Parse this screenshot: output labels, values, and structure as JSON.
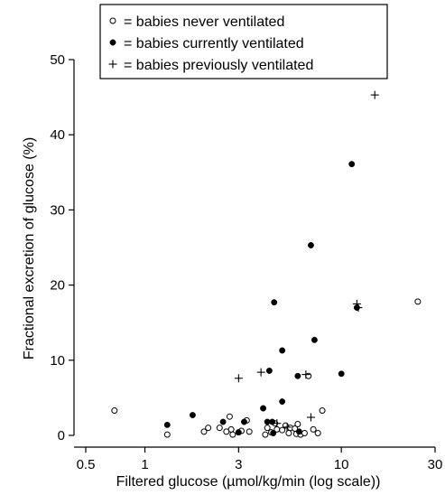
{
  "chart_data": {
    "type": "scatter",
    "title": "",
    "xlabel": "Filtered glucose (µmol/kg/min (log scale))",
    "ylabel": "Fractional excretion of glucose (%)",
    "x_scale": "log",
    "xlim": [
      0.5,
      30
    ],
    "ylim": [
      0,
      50
    ],
    "x_ticks": [
      0.5,
      1,
      3,
      10,
      30
    ],
    "x_tick_labels": [
      "0.5",
      "1",
      "3",
      "10",
      "30"
    ],
    "y_ticks": [
      0,
      10,
      20,
      30,
      40,
      50
    ],
    "y_tick_labels": [
      "0",
      "10",
      "20",
      "30",
      "40",
      "50"
    ],
    "grid": false,
    "legend_position": "top",
    "series": [
      {
        "name": "babies never ventilated",
        "legend_label": "= babies never ventilated",
        "marker": "open-circle",
        "points": [
          [
            0.7,
            3.3
          ],
          [
            1.3,
            0.1
          ],
          [
            2.0,
            0.5
          ],
          [
            2.1,
            1.0
          ],
          [
            2.4,
            1.0
          ],
          [
            2.6,
            0.5
          ],
          [
            2.7,
            2.5
          ],
          [
            2.75,
            0.8
          ],
          [
            2.8,
            0.1
          ],
          [
            3.0,
            0.4
          ],
          [
            3.1,
            0.6
          ],
          [
            3.3,
            2.0
          ],
          [
            3.4,
            0.5
          ],
          [
            4.1,
            0.1
          ],
          [
            4.2,
            1.0
          ],
          [
            4.4,
            0.4
          ],
          [
            4.6,
            1.6
          ],
          [
            4.7,
            0.8
          ],
          [
            5.0,
            0.7
          ],
          [
            5.2,
            1.3
          ],
          [
            5.4,
            0.3
          ],
          [
            5.5,
            1.0
          ],
          [
            5.8,
            0.9
          ],
          [
            5.9,
            0.2
          ],
          [
            6.0,
            1.5
          ],
          [
            6.2,
            0.1
          ],
          [
            6.5,
            0.3
          ],
          [
            6.8,
            7.9
          ],
          [
            7.2,
            0.8
          ],
          [
            7.6,
            0.3
          ],
          [
            8.0,
            3.3
          ],
          [
            24.5,
            17.8
          ]
        ]
      },
      {
        "name": "babies currently ventilated",
        "legend_label": "= babies currently ventilated",
        "marker": "filled-circle",
        "points": [
          [
            1.3,
            1.4
          ],
          [
            1.75,
            2.7
          ],
          [
            2.5,
            1.8
          ],
          [
            3.0,
            0.4
          ],
          [
            3.2,
            1.8
          ],
          [
            4.0,
            3.6
          ],
          [
            4.2,
            1.8
          ],
          [
            4.3,
            8.6
          ],
          [
            4.45,
            1.8
          ],
          [
            4.5,
            0.3
          ],
          [
            4.55,
            17.7
          ],
          [
            5.0,
            4.5
          ],
          [
            5.0,
            11.3
          ],
          [
            6.0,
            7.9
          ],
          [
            6.1,
            0.5
          ],
          [
            7.0,
            25.3
          ],
          [
            7.3,
            12.7
          ],
          [
            10.0,
            8.2
          ],
          [
            11.3,
            36.1
          ],
          [
            12.0,
            17.0
          ]
        ]
      },
      {
        "name": "babies previously ventilated",
        "legend_label": "= babies previously ventilated",
        "marker": "plus",
        "points": [
          [
            3.0,
            7.6
          ],
          [
            3.9,
            8.4
          ],
          [
            4.7,
            1.6
          ],
          [
            5.3,
            1.1
          ],
          [
            6.6,
            8.1
          ],
          [
            7.0,
            2.4
          ],
          [
            12.0,
            17.5
          ],
          [
            12.2,
            17.0
          ],
          [
            14.8,
            45.3
          ]
        ]
      }
    ]
  }
}
